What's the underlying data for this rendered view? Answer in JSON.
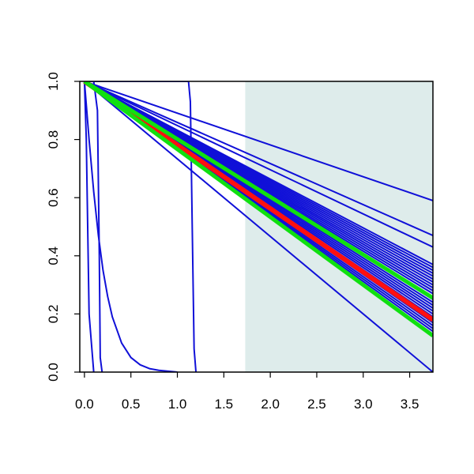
{
  "chart_data": {
    "type": "line",
    "title": "",
    "xlabel": "",
    "ylabel": "",
    "xlim": [
      -0.05,
      3.75
    ],
    "ylim": [
      0.0,
      1.0
    ],
    "x_ticks": [
      0.0,
      0.5,
      1.0,
      1.5,
      2.0,
      2.5,
      3.0,
      3.5
    ],
    "x_tick_labels": [
      "0.0",
      "0.5",
      "1.0",
      "1.5",
      "2.0",
      "2.5",
      "3.0",
      "3.5"
    ],
    "y_ticks": [
      0.0,
      0.2,
      0.4,
      0.6,
      0.8,
      1.0
    ],
    "y_tick_labels": [
      "0.0",
      "0.2",
      "0.4",
      "0.6",
      "0.8",
      "1.0"
    ],
    "grid": false,
    "legend": "none",
    "shaded_region": {
      "x_from": 1.73,
      "x_to": 3.75,
      "color": "#deeceb"
    },
    "colors": {
      "blue": "#1010d8",
      "red": "#ff1010",
      "green": "#10e010"
    },
    "series": [
      {
        "color": "blue",
        "x": [
          0,
          0.02,
          0.05,
          0.1
        ],
        "y": [
          1.0,
          0.8,
          0.2,
          0.0
        ]
      },
      {
        "color": "blue",
        "x": [
          0,
          0.05,
          0.1,
          0.15,
          0.2,
          0.25,
          0.3,
          0.4,
          0.5,
          0.6,
          0.7,
          0.8,
          0.9,
          1.0
        ],
        "y": [
          1.0,
          0.8,
          0.62,
          0.47,
          0.35,
          0.26,
          0.19,
          0.1,
          0.05,
          0.025,
          0.012,
          0.006,
          0.003,
          0.0
        ]
      },
      {
        "color": "blue",
        "x": [
          0,
          0.1,
          0.14,
          0.16,
          0.17,
          0.19
        ],
        "y": [
          1.0,
          1.0,
          0.9,
          0.4,
          0.05,
          0.0
        ]
      },
      {
        "color": "blue",
        "x": [
          0,
          0.05,
          1.12,
          1.14,
          1.16,
          1.18,
          1.2
        ],
        "y": [
          1.0,
          1.0,
          1.0,
          0.93,
          0.5,
          0.08,
          0.0
        ]
      },
      {
        "color": "blue",
        "x": [
          0,
          3.75
        ],
        "y": [
          1.0,
          0.0
        ]
      },
      {
        "color": "blue",
        "x": [
          0,
          3.75
        ],
        "y": [
          1.0,
          0.59
        ]
      },
      {
        "color": "blue",
        "x": [
          0,
          3.75
        ],
        "y": [
          1.0,
          0.47
        ]
      },
      {
        "color": "blue",
        "x": [
          0,
          3.75
        ],
        "y": [
          1.0,
          0.43
        ]
      },
      {
        "color": "blue",
        "x": [
          0,
          3.75
        ],
        "y": [
          1.0,
          0.37
        ]
      },
      {
        "color": "blue",
        "x": [
          0,
          3.75
        ],
        "y": [
          1.0,
          0.36
        ]
      },
      {
        "color": "blue",
        "x": [
          0,
          3.75
        ],
        "y": [
          1.0,
          0.35
        ]
      },
      {
        "color": "blue",
        "x": [
          0,
          3.75
        ],
        "y": [
          1.0,
          0.34
        ]
      },
      {
        "color": "blue",
        "x": [
          0,
          3.75
        ],
        "y": [
          1.0,
          0.33
        ]
      },
      {
        "color": "blue",
        "x": [
          0,
          3.75
        ],
        "y": [
          1.0,
          0.32
        ]
      },
      {
        "color": "blue",
        "x": [
          0,
          3.75
        ],
        "y": [
          1.0,
          0.31
        ]
      },
      {
        "color": "blue",
        "x": [
          0,
          3.75
        ],
        "y": [
          1.0,
          0.3
        ]
      },
      {
        "color": "blue",
        "x": [
          0,
          3.75
        ],
        "y": [
          1.0,
          0.29
        ]
      },
      {
        "color": "blue",
        "x": [
          0,
          3.75
        ],
        "y": [
          1.0,
          0.28
        ]
      },
      {
        "color": "blue",
        "x": [
          0,
          3.75
        ],
        "y": [
          1.0,
          0.27
        ]
      },
      {
        "color": "blue",
        "x": [
          0,
          3.75
        ],
        "y": [
          1.0,
          0.25
        ]
      },
      {
        "color": "blue",
        "x": [
          0,
          3.75
        ],
        "y": [
          1.0,
          0.24
        ]
      },
      {
        "color": "blue",
        "x": [
          0,
          3.75
        ],
        "y": [
          1.0,
          0.23
        ]
      },
      {
        "color": "blue",
        "x": [
          0,
          3.75
        ],
        "y": [
          1.0,
          0.22
        ]
      },
      {
        "color": "blue",
        "x": [
          0,
          3.75
        ],
        "y": [
          1.0,
          0.21
        ]
      },
      {
        "color": "blue",
        "x": [
          0,
          3.75
        ],
        "y": [
          1.0,
          0.2
        ]
      },
      {
        "color": "blue",
        "x": [
          0,
          3.75
        ],
        "y": [
          1.0,
          0.19
        ]
      },
      {
        "color": "blue",
        "x": [
          0,
          3.75
        ],
        "y": [
          1.0,
          0.17
        ]
      },
      {
        "color": "blue",
        "x": [
          0,
          3.75
        ],
        "y": [
          1.0,
          0.16
        ]
      },
      {
        "color": "blue",
        "x": [
          0,
          3.75
        ],
        "y": [
          1.0,
          0.15
        ]
      },
      {
        "color": "blue",
        "x": [
          0,
          3.75
        ],
        "y": [
          1.0,
          0.14
        ]
      },
      {
        "color": "blue",
        "x": [
          0,
          3.75
        ],
        "y": [
          1.0,
          0.13
        ]
      },
      {
        "color": "red",
        "x": [
          0,
          3.75
        ],
        "y": [
          1.0,
          0.18
        ]
      },
      {
        "color": "green",
        "x": [
          0,
          3.75
        ],
        "y": [
          1.0,
          0.255
        ]
      },
      {
        "color": "green",
        "x": [
          0,
          3.75
        ],
        "y": [
          1.0,
          0.125
        ]
      }
    ]
  }
}
